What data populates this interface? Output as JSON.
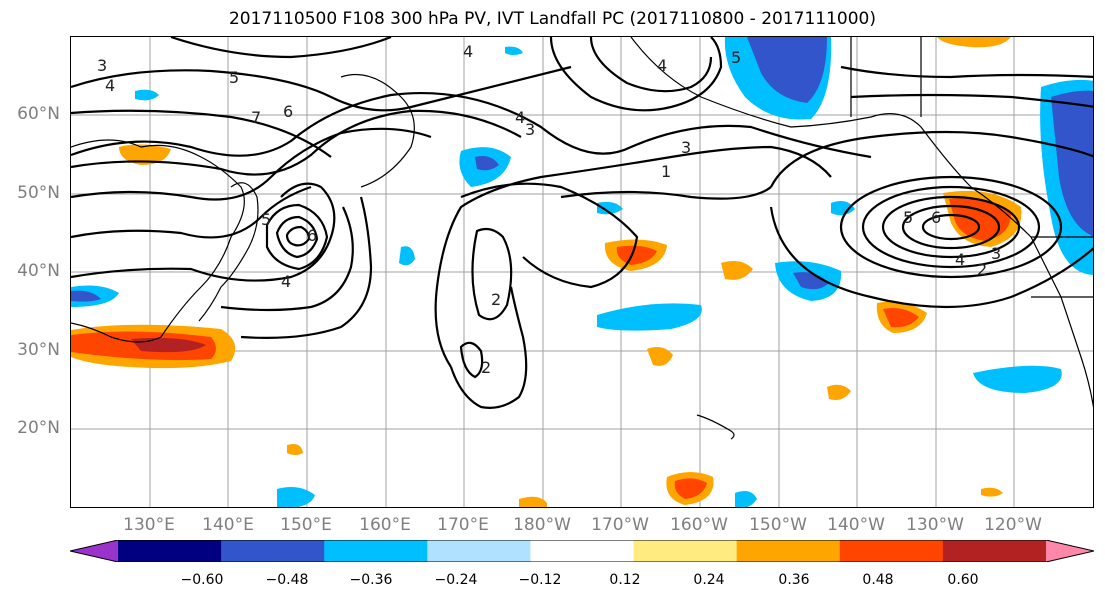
{
  "title": "2017110500 F108 300 hPa PV, IVT Landfall PC (2017110800 - 2017111000)",
  "lat_labels": [
    "60°N",
    "50°N",
    "40°N",
    "30°N",
    "20°N"
  ],
  "lon_labels": [
    "130°E",
    "140°E",
    "150°E",
    "160°E",
    "170°E",
    "180°W",
    "170°W",
    "160°W",
    "150°W",
    "140°W",
    "130°W",
    "120°W"
  ],
  "colorbar": {
    "colors": [
      "#9933cc",
      "#000080",
      "#3355cc",
      "#00bfff",
      "#b0e2ff",
      "#ffffff",
      "#ffeb80",
      "#ffa500",
      "#ff4500",
      "#b22222",
      "#ff88aa"
    ],
    "ticks": [
      "−0.60",
      "−0.48",
      "−0.36",
      "−0.24",
      "−0.12",
      "0.12",
      "0.24",
      "0.36",
      "0.48",
      "0.60"
    ]
  },
  "contour_labels": [
    "3",
    "4",
    "5",
    "4",
    "7",
    "6",
    "5",
    "6",
    "4",
    "4",
    "4",
    "3",
    "5",
    "3",
    "1",
    "2",
    "2",
    "5",
    "6",
    "4",
    "3",
    "2"
  ],
  "colors": {
    "land": "#000000",
    "grid": "#a0a0a0",
    "contour": "#000000"
  }
}
